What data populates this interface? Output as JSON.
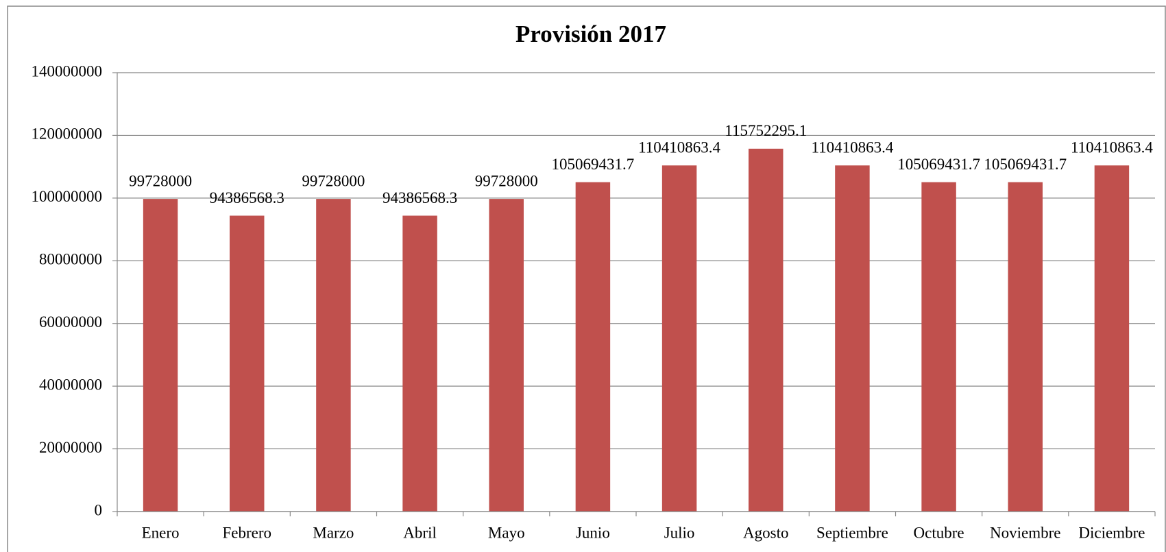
{
  "chart_data": {
    "type": "bar",
    "title": "Provisión 2017",
    "categories": [
      "Enero",
      "Febrero",
      "Marzo",
      "Abril",
      "Mayo",
      "Junio",
      "Julio",
      "Agosto",
      "Septiembre",
      "Octubre",
      "Noviembre",
      "Diciembre"
    ],
    "values": [
      99728000,
      94386568.3,
      99728000,
      94386568.3,
      99728000,
      105069431.7,
      110410863.4,
      115752295.1,
      110410863.4,
      105069431.7,
      105069431.7,
      110410863.4
    ],
    "color": "#c0504d",
    "ylim": [
      0,
      140000000
    ],
    "yticks": [
      0,
      20000000,
      40000000,
      60000000,
      80000000,
      100000000,
      120000000,
      140000000
    ],
    "grid": true
  }
}
